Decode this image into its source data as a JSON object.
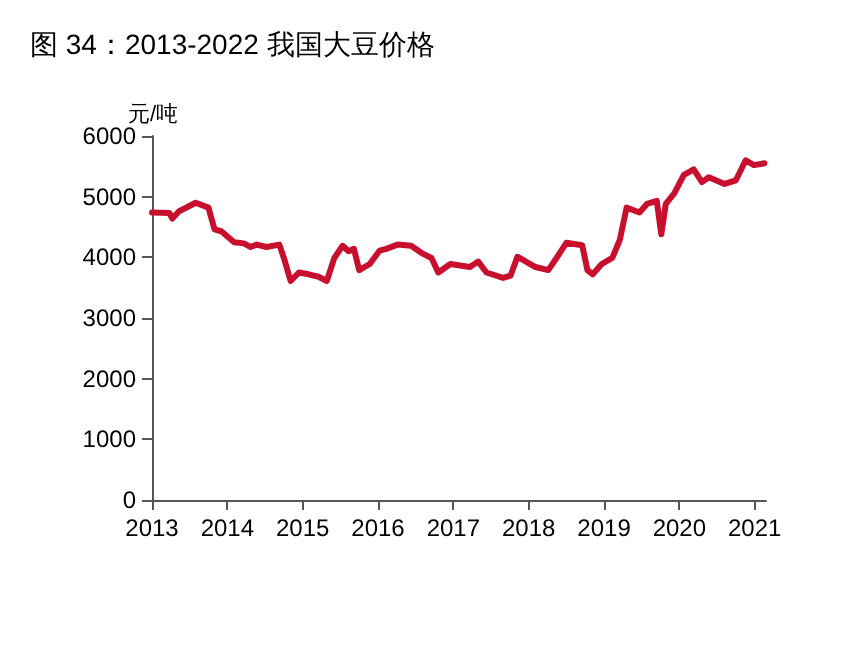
{
  "chart_data": {
    "type": "line",
    "title": "图 34：2013-2022 我国大豆价格",
    "ylabel": "元/吨",
    "x": [
      2013,
      2013.23,
      2013.27,
      2013.36,
      2013.58,
      2013.75,
      2013.83,
      2013.92,
      2014.09,
      2014.22,
      2014.31,
      2014.39,
      2014.52,
      2014.69,
      2014.75,
      2014.84,
      2014.95,
      2015.08,
      2015.21,
      2015.32,
      2015.42,
      2015.53,
      2015.61,
      2015.68,
      2015.75,
      2015.89,
      2016.02,
      2016.11,
      2016.26,
      2016.44,
      2016.58,
      2016.71,
      2016.8,
      2016.96,
      2017.22,
      2017.33,
      2017.44,
      2017.66,
      2017.76,
      2017.85,
      2018.09,
      2018.26,
      2018.37,
      2018.5,
      2018.71,
      2018.78,
      2018.85,
      2018.97,
      2019.11,
      2019.21,
      2019.3,
      2019.47,
      2019.57,
      2019.7,
      2019.76,
      2019.82,
      2019.93,
      2020.06,
      2020.19,
      2020.3,
      2020.39,
      2020.6,
      2020.75,
      2020.88,
      2020.99,
      2021.13
    ],
    "series": [
      {
        "color": "#c8102e",
        "values": [
          4740,
          4730,
          4640,
          4760,
          4900,
          4820,
          4460,
          4430,
          4250,
          4230,
          4170,
          4210,
          4170,
          4210,
          3990,
          3610,
          3750,
          3720,
          3680,
          3610,
          3990,
          4190,
          4100,
          4140,
          3790,
          3890,
          4110,
          4140,
          4210,
          4190,
          4070,
          3990,
          3750,
          3890,
          3840,
          3930,
          3750,
          3660,
          3700,
          4010,
          3840,
          3790,
          3990,
          4240,
          4200,
          3790,
          3720,
          3890,
          3990,
          4290,
          4820,
          4740,
          4880,
          4930,
          4380,
          4880,
          5050,
          5360,
          5450,
          5240,
          5320,
          5210,
          5270,
          5600,
          5520,
          5550
        ]
      }
    ],
    "xlim": [
      2013,
      2021.15
    ],
    "xticks": [
      2013,
      2014,
      2015,
      2016,
      2017,
      2018,
      2019,
      2020,
      2021
    ],
    "ylim": [
      0,
      6000
    ],
    "yticks": [
      0,
      1000,
      2000,
      3000,
      4000,
      5000,
      6000
    ],
    "grid": false,
    "marker": "none",
    "line_style": "solid"
  }
}
